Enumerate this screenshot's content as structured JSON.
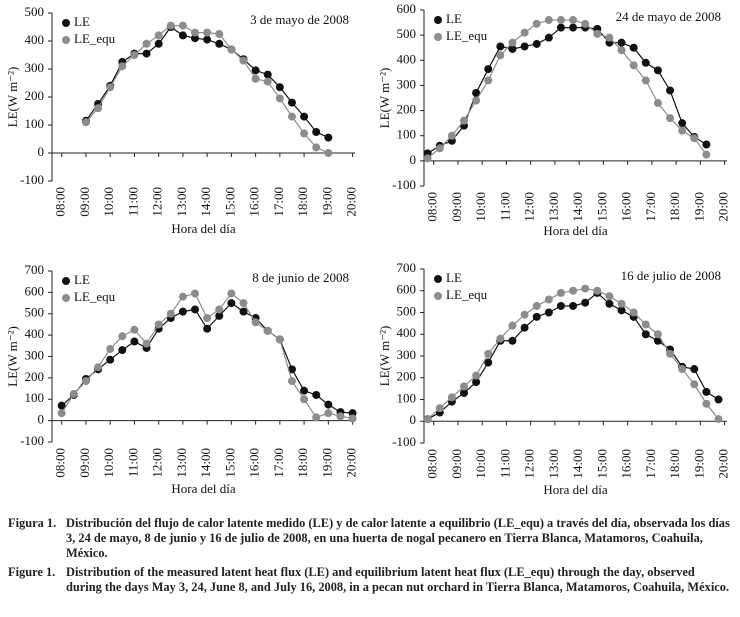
{
  "chart_data": [
    {
      "type": "line",
      "annotation": "3 de mayo de 2008",
      "xlabel": "Hora del día",
      "ylabel": "LE(W m⁻²)",
      "x": [
        9,
        9.5,
        10,
        10.5,
        11,
        11.5,
        12,
        12.5,
        13,
        13.5,
        14,
        14.5,
        15,
        15.5,
        16,
        16.5,
        17,
        17.5,
        18,
        18.5,
        19
      ],
      "series": [
        {
          "name": "LE",
          "color": "#111111",
          "values": [
            115,
            175,
            240,
            325,
            355,
            355,
            390,
            450,
            420,
            410,
            405,
            390,
            370,
            335,
            295,
            280,
            235,
            180,
            130,
            75,
            55
          ]
        },
        {
          "name": "LE_equ",
          "color": "#8c8c8c",
          "values": [
            110,
            160,
            235,
            310,
            350,
            390,
            420,
            455,
            455,
            430,
            430,
            425,
            370,
            330,
            265,
            255,
            195,
            130,
            70,
            20,
            0
          ]
        }
      ],
      "xlim": [
        7.6,
        20.1
      ],
      "ylim": [
        -100,
        500
      ],
      "xticks": [
        {
          "value": 8,
          "label": "08:00"
        },
        {
          "value": 9,
          "label": "09:00"
        },
        {
          "value": 10,
          "label": "10:00"
        },
        {
          "value": 11,
          "label": "11:00"
        },
        {
          "value": 12,
          "label": "12:00"
        },
        {
          "value": 13,
          "label": "13:00"
        },
        {
          "value": 14,
          "label": "14:00"
        },
        {
          "value": 15,
          "label": "15:00"
        },
        {
          "value": 16,
          "label": "16:00"
        },
        {
          "value": 17,
          "label": "17:00"
        },
        {
          "value": 18,
          "label": "18:00"
        },
        {
          "value": 19,
          "label": "19:00"
        },
        {
          "value": 20,
          "label": "20:00"
        }
      ],
      "yticks": [
        -100,
        0,
        100,
        200,
        300,
        400,
        500
      ],
      "legend": "upper left"
    },
    {
      "type": "line",
      "annotation": "24 de mayo de 2008",
      "xlabel": "Hora del día",
      "ylabel": "LE(W m⁻²)",
      "x": [
        7.75,
        8.25,
        8.75,
        9.25,
        9.75,
        10.25,
        10.75,
        11.25,
        11.75,
        12.25,
        12.75,
        13.25,
        13.75,
        14.25,
        14.75,
        15.25,
        15.75,
        16.25,
        16.75,
        17.25,
        17.75,
        18.25,
        18.75,
        19.25
      ],
      "series": [
        {
          "name": "LE",
          "color": "#111111",
          "values": [
            30,
            60,
            80,
            140,
            270,
            365,
            455,
            445,
            455,
            465,
            490,
            530,
            530,
            530,
            525,
            470,
            470,
            450,
            390,
            360,
            280,
            150,
            95,
            65
          ]
        },
        {
          "name": "LE_equ",
          "color": "#8c8c8c",
          "values": [
            10,
            50,
            100,
            160,
            240,
            320,
            420,
            470,
            510,
            545,
            560,
            560,
            560,
            545,
            505,
            490,
            440,
            380,
            320,
            230,
            170,
            120,
            90,
            25
          ]
        }
      ],
      "xlim": [
        7.6,
        20.1
      ],
      "ylim": [
        -100,
        600
      ],
      "xticks": [
        {
          "value": 8,
          "label": "08:00"
        },
        {
          "value": 9,
          "label": "09:00"
        },
        {
          "value": 10,
          "label": "10:00"
        },
        {
          "value": 11,
          "label": "11:00"
        },
        {
          "value": 12,
          "label": "12:00"
        },
        {
          "value": 13,
          "label": "13:00"
        },
        {
          "value": 14,
          "label": "14:00"
        },
        {
          "value": 15,
          "label": "15:00"
        },
        {
          "value": 16,
          "label": "16:00"
        },
        {
          "value": 17,
          "label": "17:00"
        },
        {
          "value": 18,
          "label": "18:00"
        },
        {
          "value": 19,
          "label": "19:00"
        },
        {
          "value": 20,
          "label": "20:00"
        }
      ],
      "yticks": [
        -100,
        0,
        100,
        200,
        300,
        400,
        500,
        600
      ],
      "legend": "upper left"
    },
    {
      "type": "line",
      "annotation": "8 de junio de 2008",
      "xlabel": "Hora del día",
      "ylabel": "LE(W m⁻²)",
      "x": [
        8,
        8.5,
        9,
        9.5,
        10,
        10.5,
        11,
        11.5,
        12,
        12.5,
        13,
        13.5,
        14,
        14.5,
        15,
        15.5,
        16,
        16.5,
        17,
        17.5,
        18,
        18.5,
        19,
        19.5,
        20
      ],
      "series": [
        {
          "name": "LE",
          "color": "#111111",
          "values": [
            70,
            120,
            195,
            240,
            285,
            330,
            370,
            340,
            430,
            480,
            510,
            520,
            430,
            490,
            550,
            510,
            480,
            420,
            380,
            240,
            140,
            120,
            75,
            40,
            35
          ]
        },
        {
          "name": "LE_equ",
          "color": "#8c8c8c",
          "values": [
            35,
            125,
            185,
            250,
            335,
            395,
            425,
            360,
            450,
            500,
            580,
            595,
            480,
            520,
            595,
            550,
            460,
            420,
            380,
            185,
            100,
            15,
            35,
            20,
            10
          ]
        }
      ],
      "xlim": [
        7.6,
        20.1
      ],
      "ylim": [
        -100,
        700
      ],
      "xticks": [
        {
          "value": 8,
          "label": "08:00"
        },
        {
          "value": 9,
          "label": "09:00"
        },
        {
          "value": 10,
          "label": "10:00"
        },
        {
          "value": 11,
          "label": "11:00"
        },
        {
          "value": 12,
          "label": "12:00"
        },
        {
          "value": 13,
          "label": "13:00"
        },
        {
          "value": 14,
          "label": "14:00"
        },
        {
          "value": 15,
          "label": "15:00"
        },
        {
          "value": 16,
          "label": "16:00"
        },
        {
          "value": 17,
          "label": "17:00"
        },
        {
          "value": 18,
          "label": "18:00"
        },
        {
          "value": 19,
          "label": "19:00"
        },
        {
          "value": 20,
          "label": "20:00"
        }
      ],
      "yticks": [
        -100,
        0,
        100,
        200,
        300,
        400,
        500,
        600,
        700
      ],
      "legend": "upper left"
    },
    {
      "type": "line",
      "annotation": "16 de julio de 2008",
      "xlabel": "Hora del día",
      "ylabel": "LE(W m⁻²)",
      "x": [
        7.75,
        8.25,
        8.75,
        9.25,
        9.75,
        10.25,
        10.75,
        11.25,
        11.75,
        12.25,
        12.75,
        13.25,
        13.75,
        14.25,
        14.75,
        15.25,
        15.75,
        16.25,
        16.75,
        17.25,
        17.75,
        18.25,
        18.75,
        19.25,
        19.75
      ],
      "series": [
        {
          "name": "LE",
          "color": "#111111",
          "values": [
            10,
            40,
            90,
            130,
            180,
            270,
            370,
            370,
            430,
            480,
            500,
            530,
            530,
            545,
            590,
            540,
            510,
            480,
            400,
            370,
            330,
            250,
            240,
            135,
            100
          ]
        },
        {
          "name": "LE_equ",
          "color": "#8c8c8c",
          "values": [
            10,
            60,
            110,
            160,
            210,
            310,
            380,
            440,
            490,
            530,
            560,
            590,
            600,
            610,
            600,
            575,
            540,
            500,
            445,
            400,
            310,
            240,
            170,
            80,
            10
          ]
        }
      ],
      "xlim": [
        7.6,
        20.1
      ],
      "ylim": [
        -100,
        700
      ],
      "xticks": [
        {
          "value": 8,
          "label": "08:00"
        },
        {
          "value": 9,
          "label": "09:00"
        },
        {
          "value": 10,
          "label": "10:00"
        },
        {
          "value": 11,
          "label": "11:00"
        },
        {
          "value": 12,
          "label": "12:00"
        },
        {
          "value": 13,
          "label": "13:00"
        },
        {
          "value": 14,
          "label": "14:00"
        },
        {
          "value": 15,
          "label": "15:00"
        },
        {
          "value": 16,
          "label": "16:00"
        },
        {
          "value": 17,
          "label": "17:00"
        },
        {
          "value": 18,
          "label": "18:00"
        },
        {
          "value": 19,
          "label": "19:00"
        },
        {
          "value": 20,
          "label": "20:00"
        }
      ],
      "yticks": [
        -100,
        0,
        100,
        200,
        300,
        400,
        500,
        600,
        700
      ],
      "legend": "upper left"
    }
  ],
  "caption": {
    "es": {
      "label": "Figura 1.",
      "text": "Distribución del flujo de calor latente medido (LE) y de calor latente a equilibrio (LE_equ) a través del día, observada los días 3, 24 de mayo, 8 de junio y 16 de julio de 2008, en una huerta de nogal pecanero en Tierra Blanca, Matamoros, Coahuila, México."
    },
    "en": {
      "label": "Figure 1.",
      "text": "Distribution of the measured latent heat flux (LE) and equilibrium latent heat flux (LE_equ) through the day, observed during the days May 3, 24, June 8, and July 16, 2008, in a pecan nut orchard in Tierra Blanca, Matamoros, Coahuila, México."
    }
  }
}
